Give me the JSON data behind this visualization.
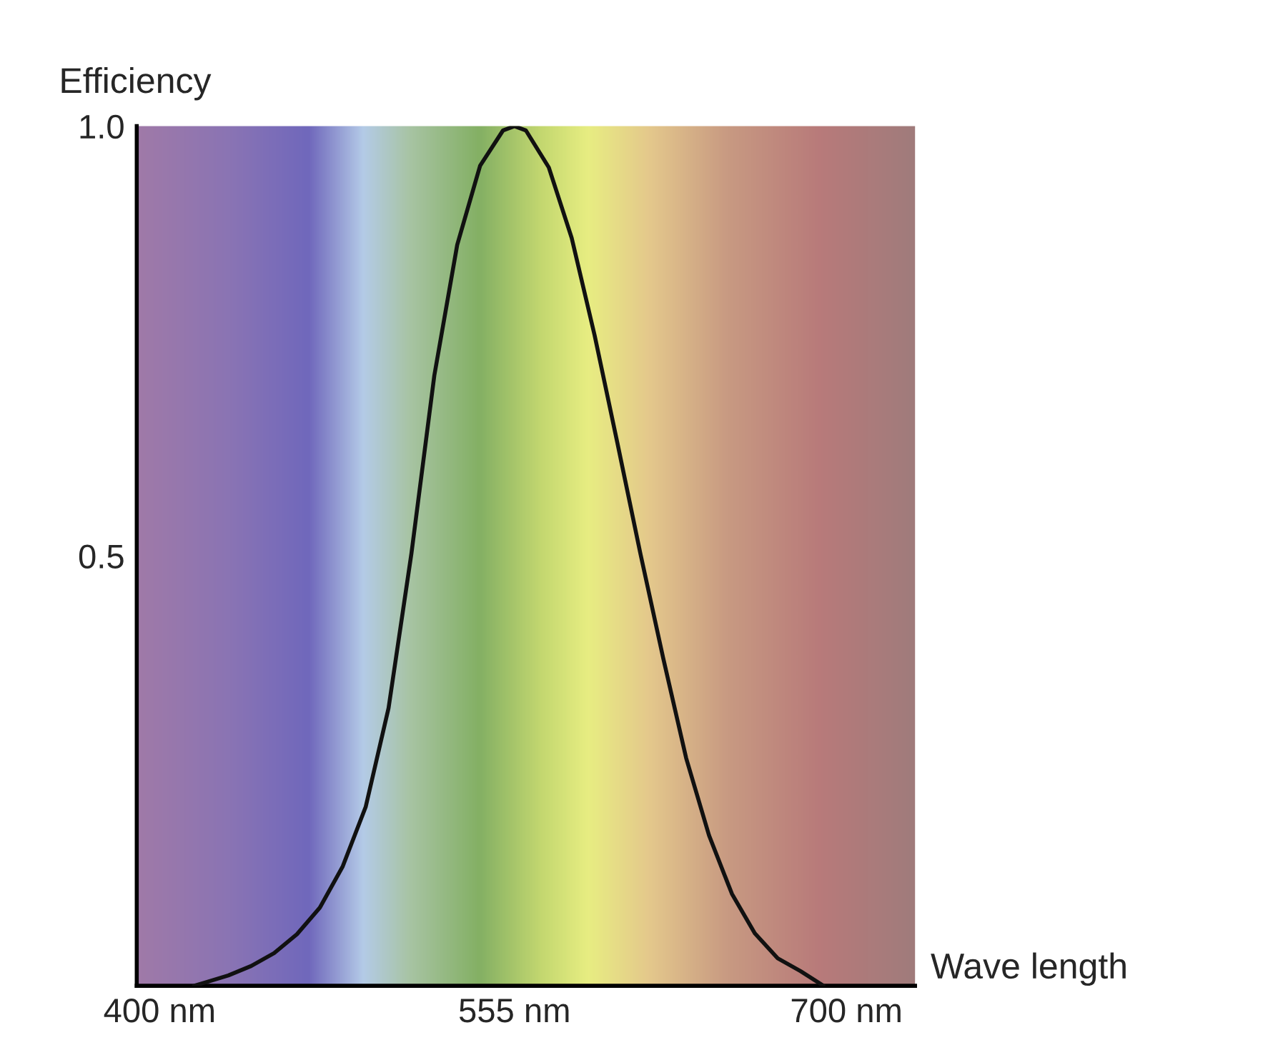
{
  "chart_data": {
    "type": "line",
    "xlabel": "Wave length",
    "ylabel": "Efficiency",
    "x": [
      415,
      420,
      430,
      440,
      450,
      460,
      470,
      480,
      490,
      500,
      510,
      520,
      530,
      540,
      550,
      555,
      560,
      570,
      580,
      590,
      600,
      610,
      620,
      630,
      640,
      650,
      660,
      670,
      680,
      690
    ],
    "series": [
      {
        "color": "#111111",
        "values": [
          0,
          0.004,
          0.012,
          0.023,
          0.038,
          0.06,
          0.091,
          0.139,
          0.208,
          0.323,
          0.503,
          0.71,
          0.862,
          0.954,
          0.995,
          1.0,
          0.995,
          0.952,
          0.87,
          0.757,
          0.631,
          0.503,
          0.381,
          0.265,
          0.175,
          0.107,
          0.061,
          0.032,
          0.017,
          0
        ]
      }
    ],
    "xlim": [
      390,
      730
    ],
    "ylim": [
      0,
      1.0
    ],
    "xticks": [
      {
        "value": 400,
        "label": "400 nm"
      },
      {
        "value": 555,
        "label": "555 nm"
      },
      {
        "value": 700,
        "label": "700 nm"
      }
    ],
    "yticks": [
      {
        "value": 0.5,
        "label": "0.5"
      },
      {
        "value": 1.0,
        "label": "1.0"
      }
    ],
    "grid": false,
    "marker": "none",
    "line_style": "solid"
  }
}
